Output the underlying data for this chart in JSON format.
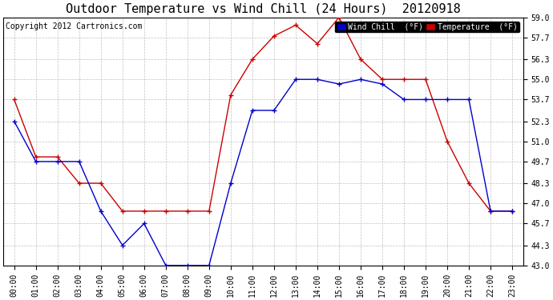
{
  "title": "Outdoor Temperature vs Wind Chill (24 Hours)  20120918",
  "copyright_text": "Copyright 2012 Cartronics.com",
  "legend_wind_chill": "Wind Chill  (°F)",
  "legend_temperature": "Temperature  (°F)",
  "x_labels": [
    "00:00",
    "01:00",
    "02:00",
    "03:00",
    "04:00",
    "05:00",
    "06:00",
    "07:00",
    "08:00",
    "09:00",
    "10:00",
    "11:00",
    "12:00",
    "13:00",
    "14:00",
    "15:00",
    "16:00",
    "17:00",
    "18:00",
    "19:00",
    "20:00",
    "21:00",
    "22:00",
    "23:00"
  ],
  "temperature_values": [
    53.7,
    50.0,
    50.0,
    48.3,
    48.3,
    46.5,
    46.5,
    46.5,
    46.5,
    46.5,
    54.0,
    56.3,
    57.8,
    58.5,
    57.3,
    59.0,
    56.3,
    55.0,
    55.0,
    55.0,
    51.0,
    48.3,
    46.5,
    46.5
  ],
  "wind_chill_values": [
    52.3,
    49.7,
    49.7,
    49.7,
    46.5,
    44.3,
    45.7,
    43.0,
    43.0,
    43.0,
    48.3,
    53.0,
    53.0,
    55.0,
    55.0,
    54.7,
    55.0,
    54.7,
    53.7,
    53.7,
    53.7,
    53.7,
    46.5,
    46.5
  ],
  "y_ticks": [
    43.0,
    44.3,
    45.7,
    47.0,
    48.3,
    49.7,
    51.0,
    52.3,
    53.7,
    55.0,
    56.3,
    57.7,
    59.0
  ],
  "y_min": 43.0,
  "y_max": 59.0,
  "temperature_color": "#cc0000",
  "wind_chill_color": "#0000cc",
  "marker": "+",
  "background_color": "#ffffff",
  "plot_bg_color": "#ffffff",
  "grid_color": "#c0c0c0",
  "title_fontsize": 11,
  "copyright_fontsize": 7,
  "legend_fontsize": 7,
  "tick_fontsize": 7
}
